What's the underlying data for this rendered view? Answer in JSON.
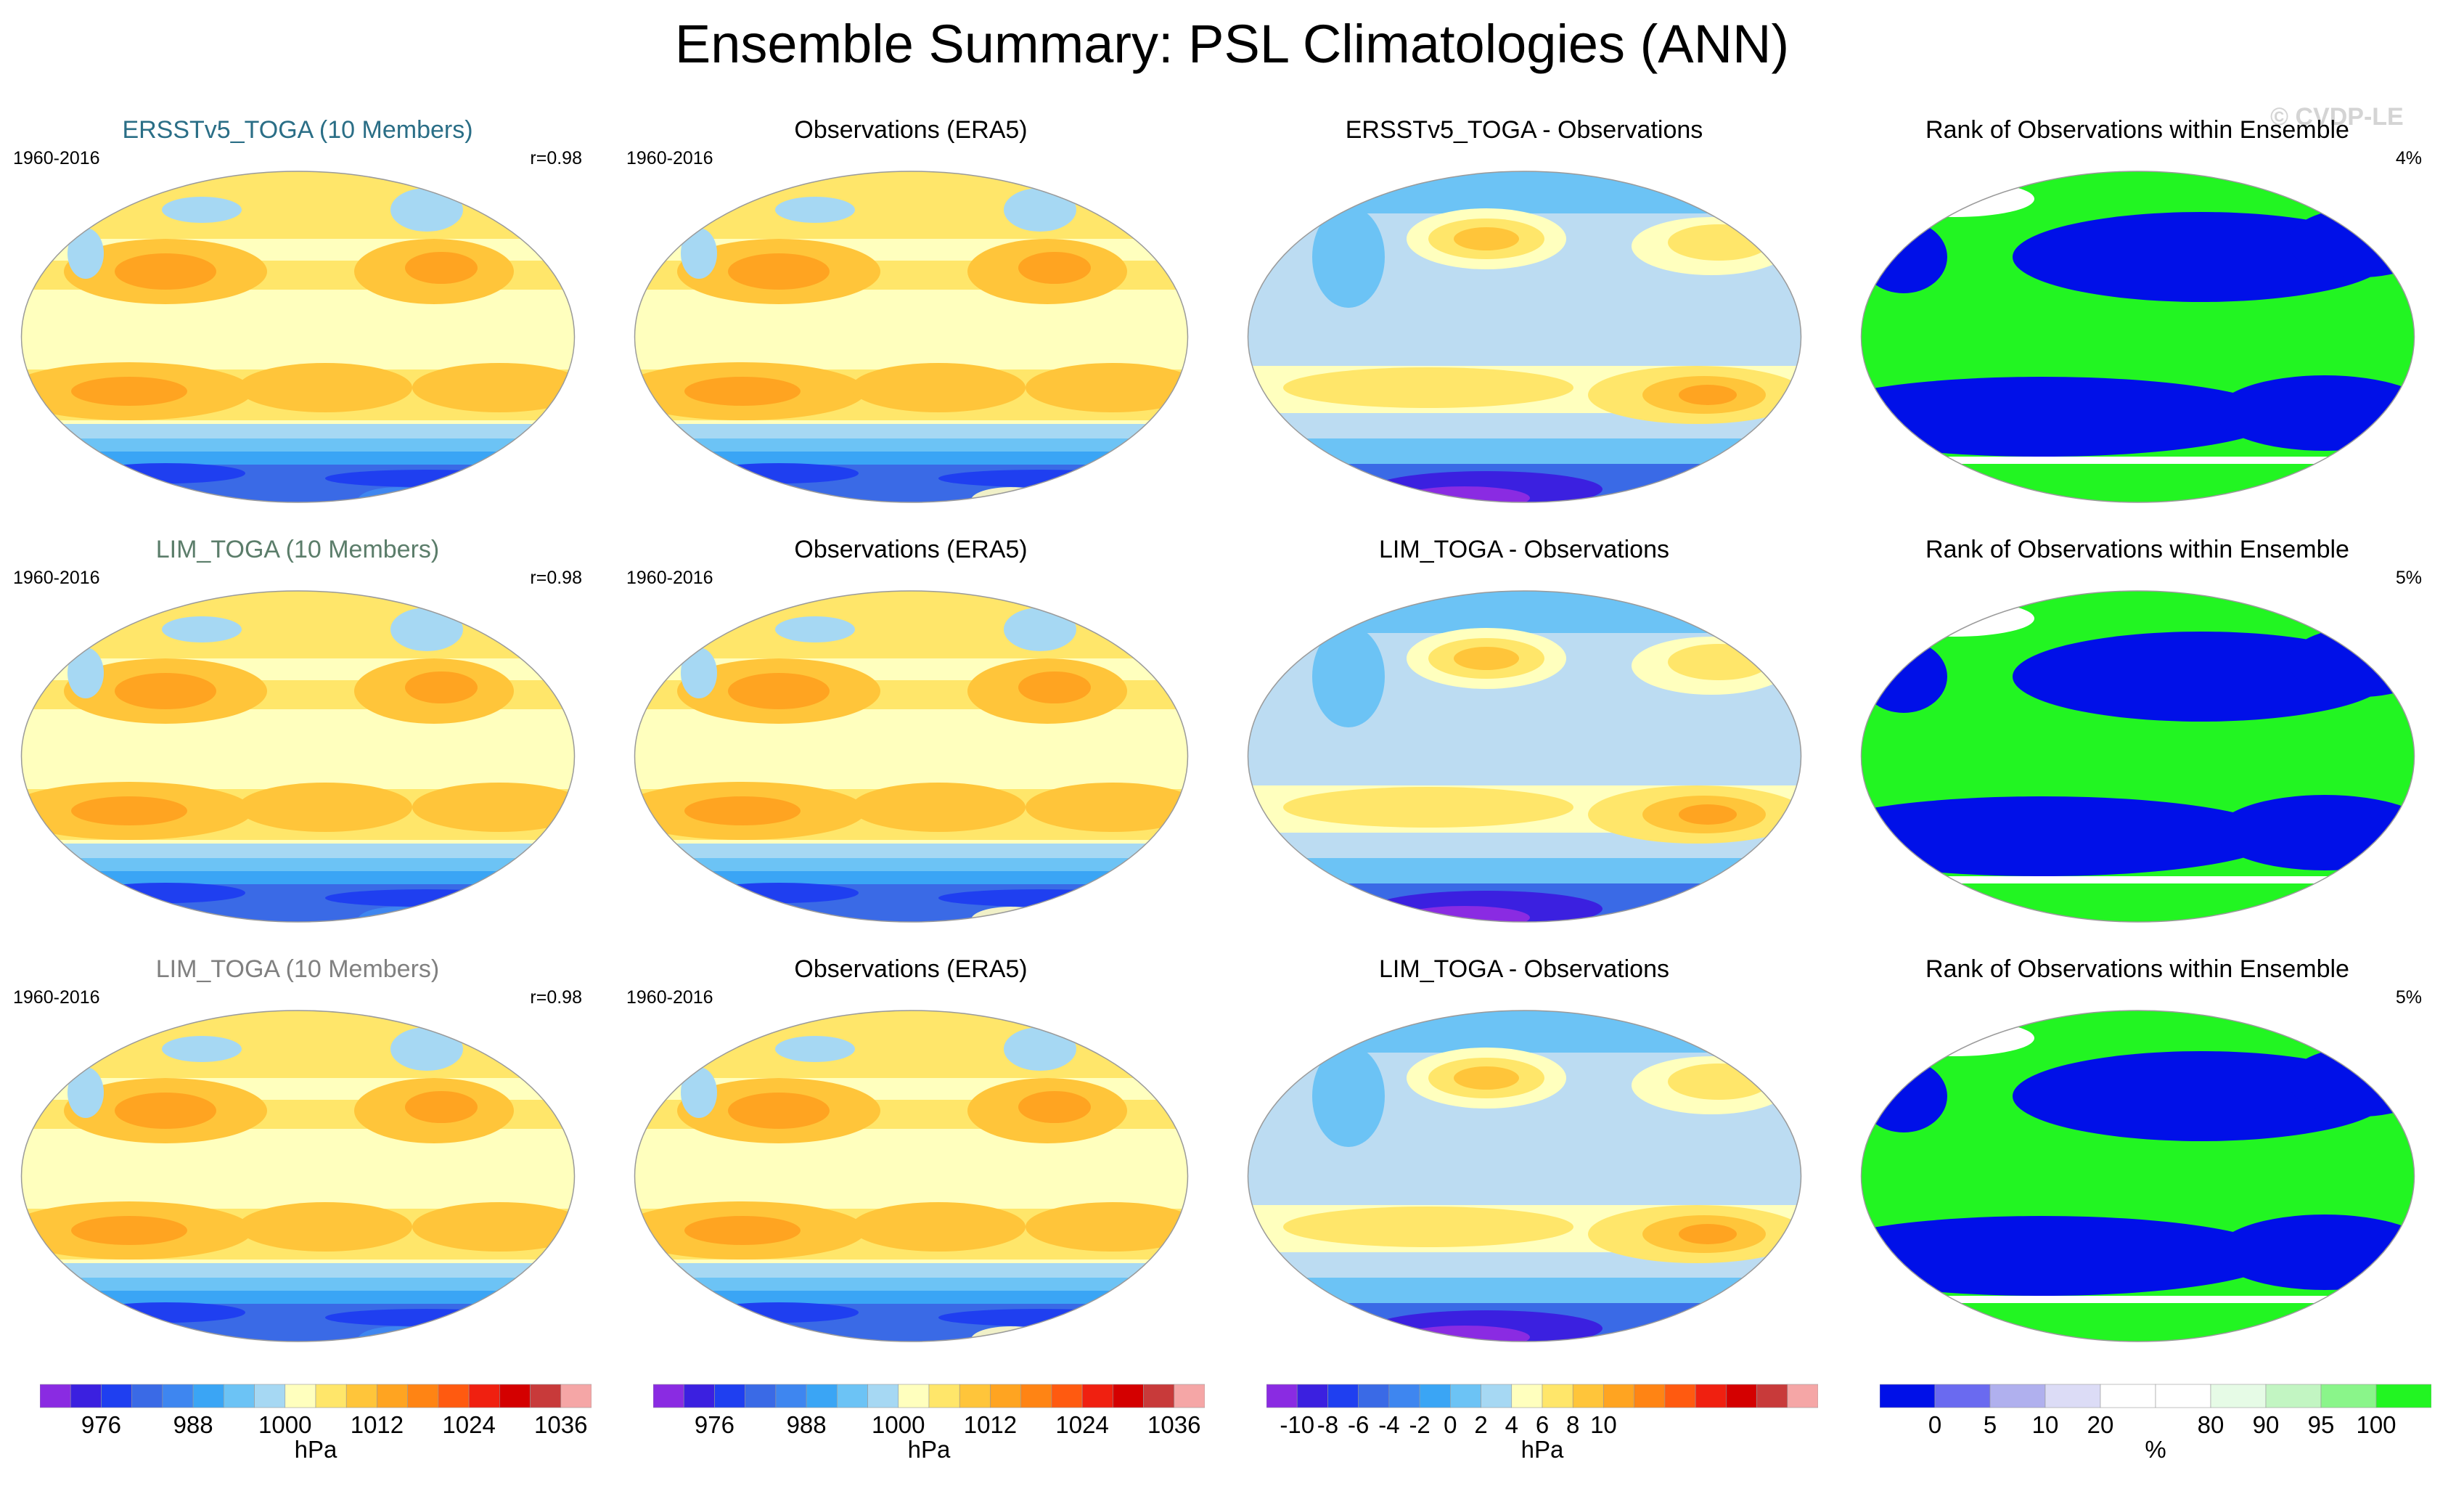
{
  "figure": {
    "title": "Ensemble Summary: PSL Climatologies (ANN)",
    "watermark": "© CVDP-LE"
  },
  "rows": [
    {
      "ensemble": {
        "title": "ERSSTv5_TOGA (10 Members)",
        "title_color": "#2a6e86",
        "period": "1960-2016",
        "stat": "r=0.98"
      },
      "observations": {
        "title": "Observations (ERA5)",
        "period": "1960-2016"
      },
      "difference": {
        "title": "ERSSTv5_TOGA - Observations"
      },
      "rank": {
        "title": "Rank of Observations within Ensemble",
        "stat": "4%"
      }
    },
    {
      "ensemble": {
        "title": "LIM_TOGA (10 Members)",
        "title_color": "#5b7d6a",
        "period": "1960-2016",
        "stat": "r=0.98"
      },
      "observations": {
        "title": "Observations (ERA5)",
        "period": "1960-2016"
      },
      "difference": {
        "title": "LIM_TOGA - Observations"
      },
      "rank": {
        "title": "Rank of Observations within Ensemble",
        "stat": "5%"
      }
    },
    {
      "ensemble": {
        "title": "LIM_TOGA (10 Members)",
        "title_color": "#808080",
        "period": "1960-2016",
        "stat": "r=0.98"
      },
      "observations": {
        "title": "Observations (ERA5)",
        "period": "1960-2016"
      },
      "difference": {
        "title": "LIM_TOGA - Observations"
      },
      "rank": {
        "title": "Rank of Observations within Ensemble",
        "stat": "5%"
      }
    }
  ],
  "colorbars": [
    {
      "units": "hPa",
      "colors": [
        "#8a2be2",
        "#3b20e0",
        "#1f3ff0",
        "#3a6ae6",
        "#3e86f0",
        "#3aa5f5",
        "#6cc3f5",
        "#a6d8f3",
        "#ffffbe",
        "#ffe66a",
        "#ffc53a",
        "#ffa421",
        "#ff8414",
        "#ff5a10",
        "#f02010",
        "#d40000",
        "#c83a3a",
        "#f5a6a6"
      ],
      "tick_labels": [
        "976",
        "988",
        "1000",
        "1012",
        "1024",
        "1036"
      ],
      "tick_after_box": [
        2,
        5,
        8,
        11,
        14,
        17
      ]
    },
    {
      "units": "hPa",
      "colors": [
        "#8a2be2",
        "#3b20e0",
        "#1f3ff0",
        "#3a6ae6",
        "#3e86f0",
        "#3aa5f5",
        "#6cc3f5",
        "#a6d8f3",
        "#ffffbe",
        "#ffe66a",
        "#ffc53a",
        "#ffa421",
        "#ff8414",
        "#ff5a10",
        "#f02010",
        "#d40000",
        "#c83a3a",
        "#f5a6a6"
      ],
      "tick_labels": [
        "976",
        "988",
        "1000",
        "1012",
        "1024",
        "1036"
      ],
      "tick_after_box": [
        2,
        5,
        8,
        11,
        14,
        17
      ]
    },
    {
      "units": "hPa",
      "colors": [
        "#8a2be2",
        "#3b20e0",
        "#1f3ff0",
        "#3a6ae6",
        "#3e86f0",
        "#3aa5f5",
        "#6cc3f5",
        "#a6d8f3",
        "#ffffbe",
        "#ffe66a",
        "#ffc53a",
        "#ffa421",
        "#ff8414",
        "#ff5a10",
        "#f02010",
        "#d40000",
        "#c83a3a",
        "#f5a6a6"
      ],
      "tick_labels": [
        "-10",
        "-8",
        "-6",
        "-4",
        "-2",
        "0",
        "2",
        "4",
        "6",
        "8",
        "10"
      ],
      "tick_after_box": [
        1,
        2,
        3,
        4,
        5,
        6,
        7,
        8,
        9,
        10,
        11
      ]
    },
    {
      "units": "%",
      "colors": [
        "#0010e8",
        "#6a6af0",
        "#b0b0ee",
        "#dcdcf6",
        "#ffffff",
        "#ffffff",
        "#e6fbe6",
        "#c2f5c2",
        "#8af58a",
        "#22f522"
      ],
      "tick_labels": [
        "0",
        "5",
        "10",
        "20",
        "80",
        "90",
        "95",
        "100"
      ],
      "tick_after_box": [
        1,
        2,
        3,
        4,
        6,
        7,
        8,
        9
      ]
    }
  ],
  "map_palettes": {
    "psl": {
      "bands": [
        "#ffffbe",
        "#ffe66a",
        "#ffc53a",
        "#ffa421",
        "#ff8414"
      ],
      "south": [
        "#a6d8f3",
        "#6cc3f5",
        "#3aa5f5",
        "#3e86f0",
        "#3a6ae6",
        "#1f3ff0"
      ],
      "land": "#f0f0c8"
    },
    "diff": {
      "base": "#bcdcf2",
      "pos": [
        "#ffffbe",
        "#ffe66a",
        "#ffc53a",
        "#ffa421"
      ],
      "neg": [
        "#6cc3f5",
        "#3a6ae6",
        "#3b20e0",
        "#8a2be2"
      ]
    },
    "rank": {
      "green": "#22f522",
      "blue": "#0010e8",
      "white": "#ffffff"
    }
  },
  "chart_data": [
    {
      "type": "heatmap",
      "title": "ERSSTv5_TOGA (10 Members)",
      "period": "1960-2016",
      "variable": "PSL",
      "units": "hPa",
      "pattern_correlation": 0.98,
      "color_levels": [
        976,
        1036
      ]
    },
    {
      "type": "heatmap",
      "title": "Observations (ERA5)",
      "period": "1960-2016",
      "variable": "PSL",
      "units": "hPa",
      "color_levels": [
        976,
        1036
      ]
    },
    {
      "type": "heatmap",
      "title": "ERSSTv5_TOGA - Observations",
      "units": "hPa",
      "color_levels": [
        -10,
        10
      ]
    },
    {
      "type": "heatmap",
      "title": "Rank of Observations within Ensemble",
      "units": "%",
      "stat": "4%",
      "color_levels": [
        0,
        5,
        10,
        20,
        80,
        90,
        95,
        100
      ]
    },
    {
      "type": "heatmap",
      "title": "LIM_TOGA (10 Members)",
      "period": "1960-2016",
      "variable": "PSL",
      "units": "hPa",
      "pattern_correlation": 0.98
    },
    {
      "type": "heatmap",
      "title": "Observations (ERA5)",
      "period": "1960-2016",
      "units": "hPa"
    },
    {
      "type": "heatmap",
      "title": "LIM_TOGA - Observations",
      "units": "hPa"
    },
    {
      "type": "heatmap",
      "title": "Rank of Observations within Ensemble",
      "units": "%",
      "stat": "5%"
    },
    {
      "type": "heatmap",
      "title": "LIM_TOGA (10 Members)",
      "period": "1960-2016",
      "variable": "PSL",
      "units": "hPa",
      "pattern_correlation": 0.98
    },
    {
      "type": "heatmap",
      "title": "Observations (ERA5)",
      "period": "1960-2016",
      "units": "hPa"
    },
    {
      "type": "heatmap",
      "title": "LIM_TOGA - Observations",
      "units": "hPa"
    },
    {
      "type": "heatmap",
      "title": "Rank of Observations within Ensemble",
      "units": "%",
      "stat": "5%"
    }
  ]
}
